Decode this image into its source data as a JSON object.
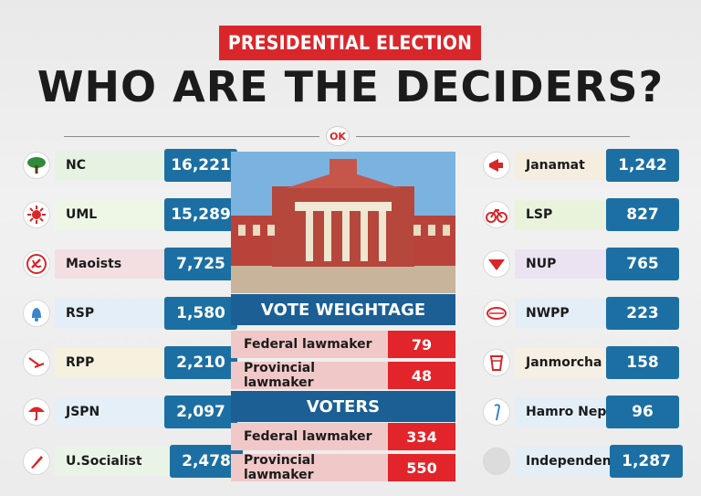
{
  "banner": "PRESIDENTIAL ELECTION",
  "headline": "WHO ARE THE DECIDERS?",
  "logo_text": "OK",
  "left_parties": [
    {
      "name": "NC",
      "value": "16,221",
      "icon": "tree-icon",
      "color": "#e6f3e3"
    },
    {
      "name": "UML",
      "value": "15,289",
      "icon": "sun-icon",
      "color": "#eef6e6"
    },
    {
      "name": "Maoists",
      "value": "7,725",
      "icon": "hammer-sickle-icon",
      "color": "#f3dfe1"
    },
    {
      "name": "RSP",
      "value": "1,580",
      "icon": "bell-icon",
      "color": "#e3eef8"
    },
    {
      "name": "RPP",
      "value": "2,210",
      "icon": "plough-icon",
      "color": "#f6f1df"
    },
    {
      "name": "JSPN",
      "value": "2,097",
      "icon": "umbrella-icon",
      "color": "#e4eff8"
    },
    {
      "name": "U.Socialist",
      "value": "2,478",
      "icon": "pen-icon",
      "color": "#e9f4e6"
    }
  ],
  "right_parties": [
    {
      "name": "Janamat",
      "value": "1,242",
      "icon": "megaphone-icon",
      "color": "#f5eedf"
    },
    {
      "name": "LSP",
      "value": "827",
      "icon": "bicycle-icon",
      "color": "#e9f3dc"
    },
    {
      "name": "NUP",
      "value": "765",
      "icon": "fan-icon",
      "color": "#ebe3f2"
    },
    {
      "name": "NWPP",
      "value": "223",
      "icon": "madal-drum-icon",
      "color": "#e4eef7"
    },
    {
      "name": "Janmorcha",
      "value": "158",
      "icon": "glass-icon",
      "color": "#f6efe3"
    },
    {
      "name": "Hamro Nepal",
      "value": "96",
      "icon": "walking-stick-icon",
      "color": "#e4eef7"
    },
    {
      "name": "Independent",
      "value": "1,287",
      "icon": "blank-circle-icon",
      "color": "#e3eef6"
    }
  ],
  "vote_weightage": {
    "title": "VOTE WEIGHTAGE",
    "rows": [
      {
        "label": "Federal lawmaker",
        "value": "79"
      },
      {
        "label": "Provincial lawmaker",
        "value": "48"
      }
    ]
  },
  "voters": {
    "title": "VOTERS",
    "rows": [
      {
        "label": "Federal lawmaker",
        "value": "334"
      },
      {
        "label": "Provincial lawmaker",
        "value": "550"
      }
    ]
  },
  "colors": {
    "accent_red": "#d9262b",
    "value_blue": "#1c6fa3",
    "section_blue": "#1b5f95"
  }
}
